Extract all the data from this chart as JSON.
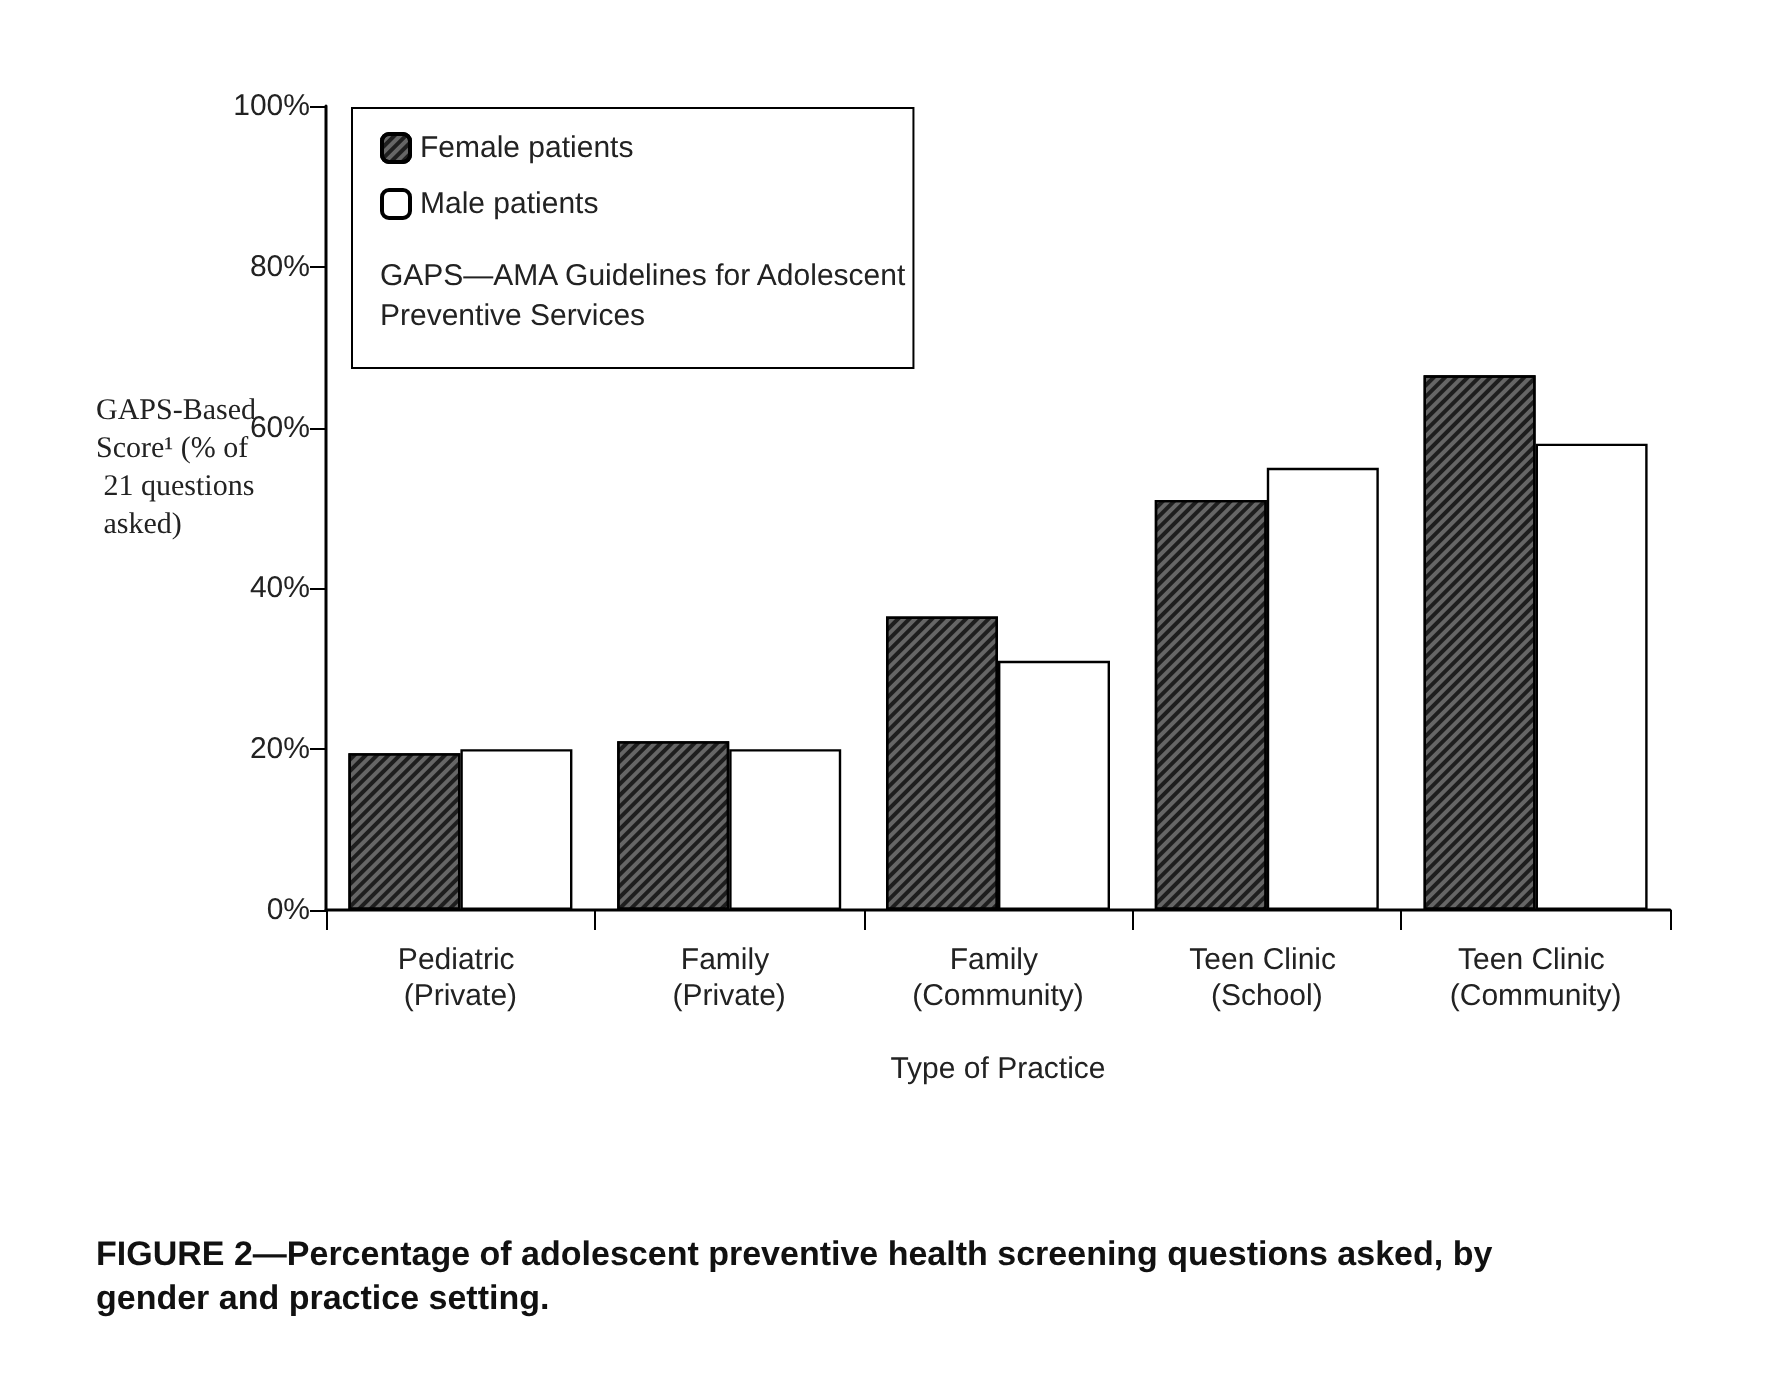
{
  "chart_data": {
    "type": "bar",
    "title": "FIGURE 2—Percentage of adolescent preventive health screening questions asked, by gender and practice setting.",
    "xlabel": "Type of Practice",
    "ylabel": "GAPS-Based Score¹ (% of 21 questions asked)",
    "categories": [
      "Pediatric (Private)",
      "Family (Private)",
      "Family (Community)",
      "Teen Clinic (School)",
      "Teen Clinic (Community)"
    ],
    "series": [
      {
        "name": "Female patients",
        "color": "#666666",
        "values": [
          19.5,
          21,
          36.5,
          51,
          66.5
        ]
      },
      {
        "name": "Male patients",
        "color": "#ffffff",
        "values": [
          20,
          20,
          31,
          55,
          58
        ]
      }
    ],
    "ylim": [
      0,
      100
    ],
    "yticks": [
      {
        "value": 0,
        "label": "0%"
      },
      {
        "value": 20,
        "label": "20%"
      },
      {
        "value": 40,
        "label": "40%"
      },
      {
        "value": 60,
        "label": "60%"
      },
      {
        "value": 80,
        "label": "80%"
      },
      {
        "value": 100,
        "label": "100%"
      }
    ],
    "annotations": [
      "GAPS—AMA Guidelines for Adolescent Preventive Services"
    ],
    "legend": "top left",
    "grid": false
  }
}
